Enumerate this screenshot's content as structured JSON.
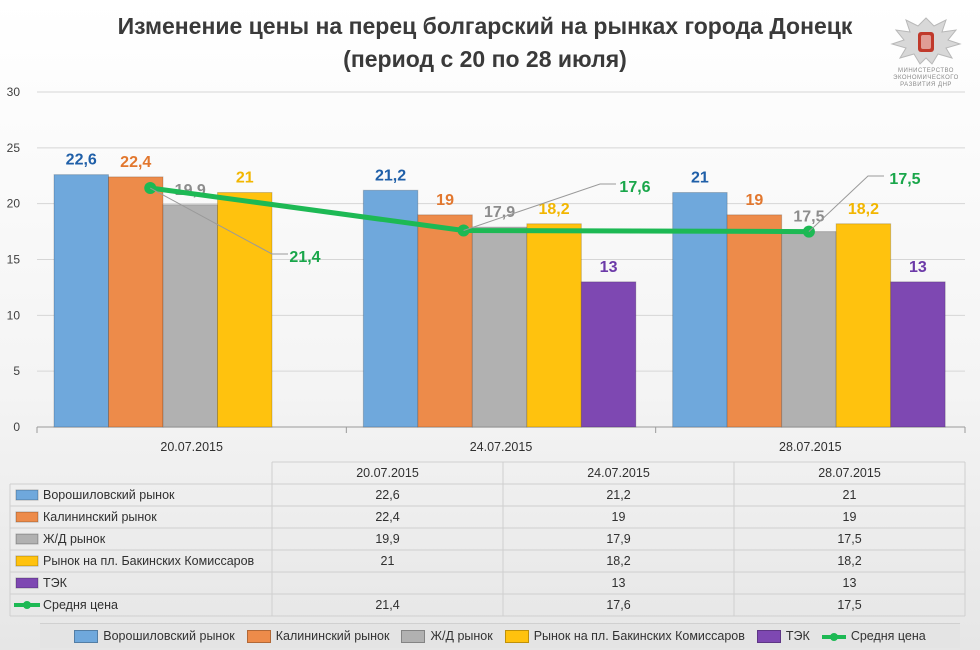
{
  "title_line1": "Изменение цены на перец болгарский на рынках города Донецк",
  "title_line2": "(период с 20 по 28 июля)",
  "emblem": {
    "icon": "dnr-eagle-emblem",
    "caption": [
      "МИНИСТЕРСТВО",
      "ЭКОНОМИЧЕСКОГО",
      "РАЗВИТИЯ ДНР"
    ]
  },
  "chart_data": {
    "type": "bar",
    "categories": [
      "20.07.2015",
      "24.07.2015",
      "28.07.2015"
    ],
    "ylim": [
      0,
      30
    ],
    "yticks": [
      0,
      5,
      10,
      15,
      20,
      25,
      30
    ],
    "grid": true,
    "series": [
      {
        "name": "Ворошиловский рынок",
        "color": "#6fa8dc",
        "label_color": "#1f5fa8",
        "values": [
          22.6,
          21.2,
          21
        ],
        "labels": [
          "22,6",
          "21,2",
          "21"
        ]
      },
      {
        "name": "Калининский рынок",
        "color": "#ed8b4a",
        "label_color": "#e2772e",
        "values": [
          22.4,
          19,
          19
        ],
        "labels": [
          "22,4",
          "19",
          "19"
        ]
      },
      {
        "name": "Ж/Д рынок",
        "color": "#b1b1b1",
        "label_color": "#8c8c8c",
        "values": [
          19.9,
          17.9,
          17.5
        ],
        "labels": [
          "19,9",
          "17,9",
          "17,5"
        ]
      },
      {
        "name": "Рынок на пл. Бакинских Комиссаров",
        "color": "#ffc20e",
        "label_color": "#f2b600",
        "values": [
          21,
          18.2,
          18.2
        ],
        "labels": [
          "21",
          "18,2",
          "18,2"
        ]
      },
      {
        "name": "ТЭК",
        "color": "#7e48b2",
        "label_color": "#6c3aa8",
        "values": [
          null,
          13,
          13
        ],
        "labels": [
          "",
          "13",
          "13"
        ]
      }
    ],
    "line_series": {
      "name": "Средня цена",
      "color": "#1db954",
      "values": [
        21.4,
        17.6,
        17.5
      ],
      "labels": [
        "21,4",
        "17,6",
        "17,5"
      ]
    },
    "table": {
      "header": [
        "",
        "20.07.2015",
        "24.07.2015",
        "28.07.2015"
      ],
      "rows": [
        [
          "Ворошиловский рынок",
          "22,6",
          "21,2",
          "21"
        ],
        [
          "Калининский рынок",
          "22,4",
          "19",
          "19"
        ],
        [
          "Ж/Д рынок",
          "19,9",
          "17,9",
          "17,5"
        ],
        [
          "Рынок на пл. Бакинских Комиссаров",
          "21",
          "18,2",
          "18,2"
        ],
        [
          "ТЭК",
          "",
          "13",
          "13"
        ],
        [
          "Средня цена",
          "21,4",
          "17,6",
          "17,5"
        ]
      ]
    },
    "legend": [
      "Ворошиловский рынок",
      "Калининский рынок",
      "Ж/Д рынок",
      "Рынок на пл. Бакинских Комиссаров",
      "ТЭК",
      "Средня цена"
    ]
  }
}
